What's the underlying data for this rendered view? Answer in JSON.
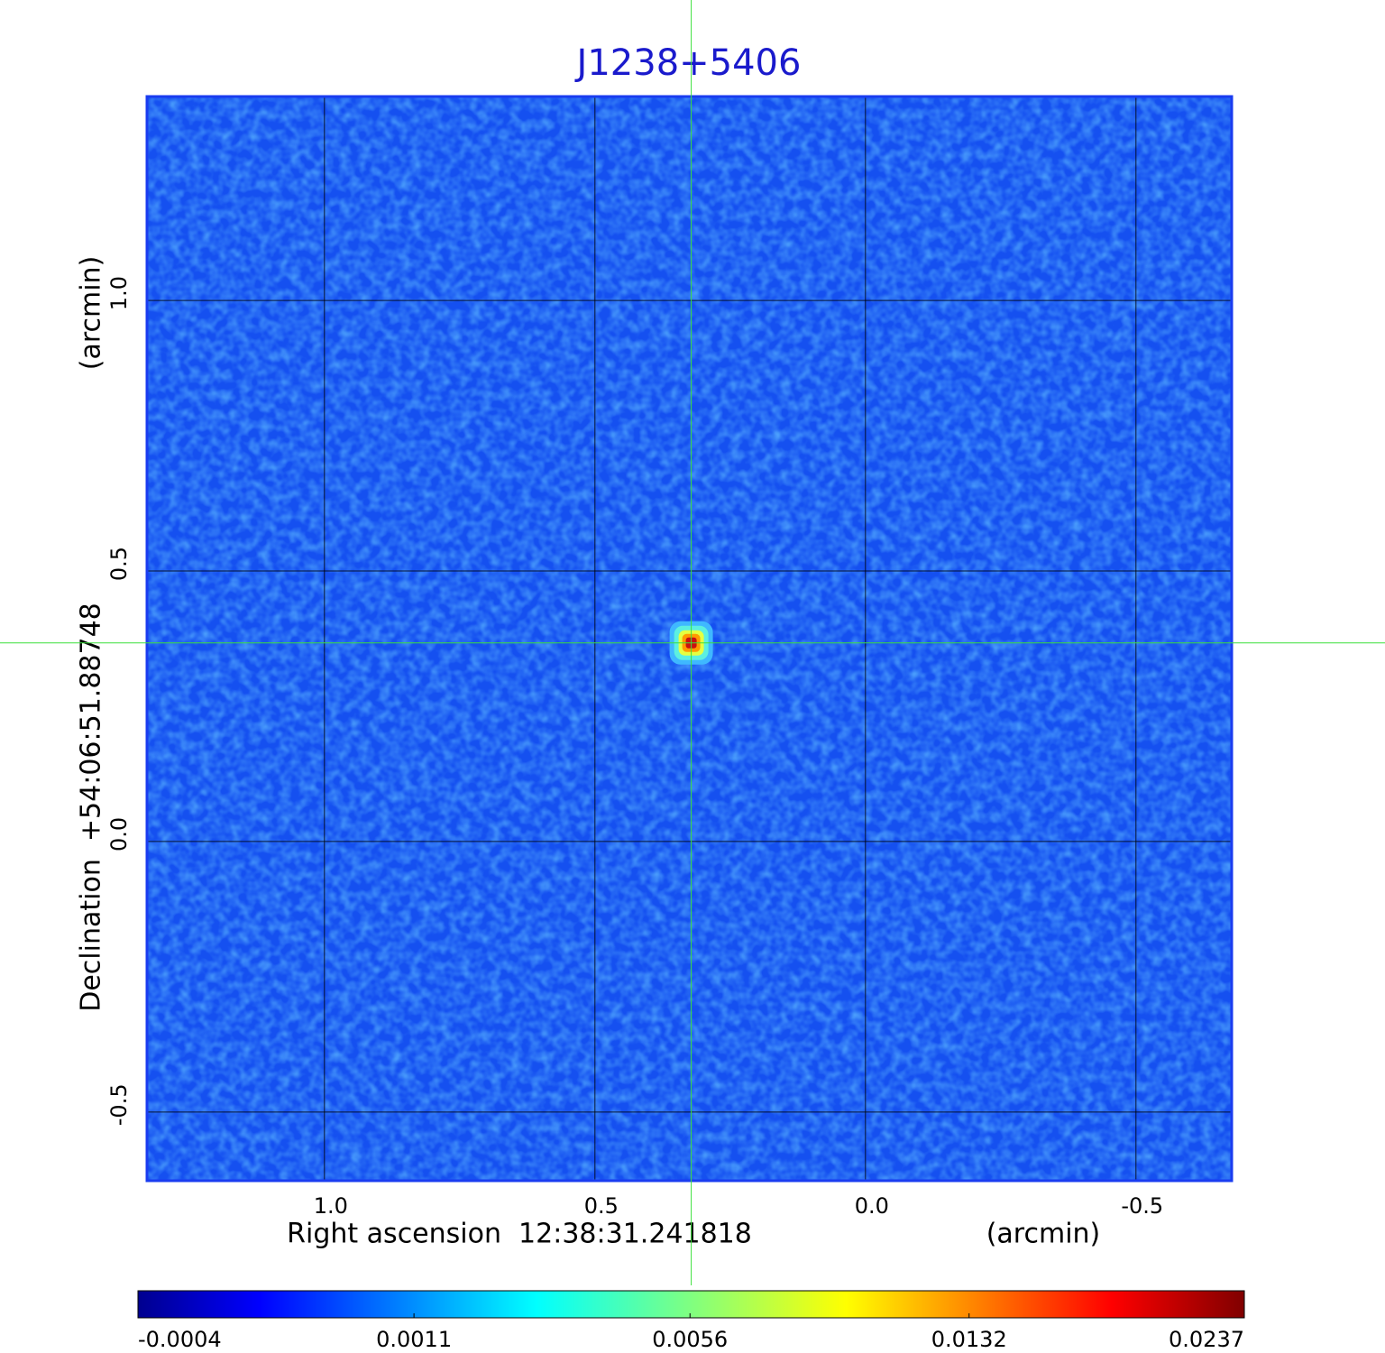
{
  "chart_data": {
    "type": "image",
    "title": "J1238+5406",
    "xlabel": "Right ascension  12:38:31.241818",
    "xunit": "(arcmin)",
    "ylabel": "Declination  +54:06:51.88748",
    "yunit": "(arcmin)",
    "xlim": [
      1.328,
      -0.677
    ],
    "ylim": [
      -0.627,
      1.377
    ],
    "xticks": [
      {
        "value": 1.0,
        "label": "1.0"
      },
      0.5,
      {
        "value": 0.0,
        "label": "0.0"
      },
      -0.5
    ],
    "yticks": [
      -0.5,
      {
        "value": 0.0,
        "label": "0.0"
      },
      0.5,
      {
        "value": 1.0,
        "label": "1.0"
      }
    ],
    "grid": true,
    "crosshair": {
      "x": 0.322,
      "y": 0.367
    },
    "source": {
      "x": 0.322,
      "y": 0.367
    },
    "color_scale": "sqrt",
    "clim": [
      -0.0004,
      0.0237
    ],
    "colorbar_ticks": [
      -0.0004,
      0.0011,
      0.0056,
      0.0132,
      0.0237
    ]
  }
}
